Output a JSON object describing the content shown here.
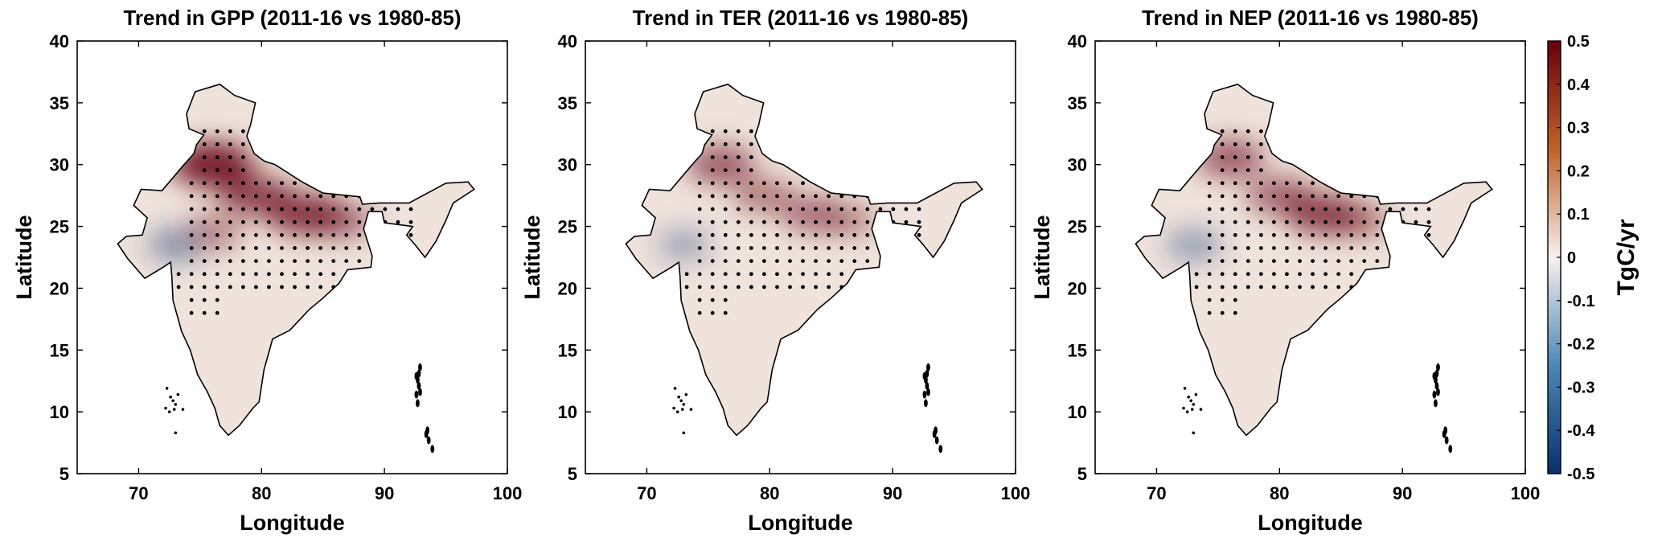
{
  "chart_data": [
    {
      "type": "heatmap",
      "title": "Trend in GPP (2011-16 vs 1980-85)",
      "xlabel": "Longitude",
      "ylabel": "Latitude",
      "xlim": [
        65,
        100
      ],
      "ylim": [
        5,
        40
      ],
      "xticks": [
        "70",
        "80",
        "90",
        "100"
      ],
      "yticks": [
        "5",
        "10",
        "15",
        "20",
        "25",
        "30",
        "35",
        "40"
      ],
      "hotspots": [
        {
          "lon": 76.0,
          "lat": 30.0,
          "value": 0.35
        },
        {
          "lon": 79.5,
          "lat": 27.5,
          "value": 0.25
        },
        {
          "lon": 83.5,
          "lat": 26.0,
          "value": 0.28
        },
        {
          "lon": 86.5,
          "lat": 25.5,
          "value": 0.15
        },
        {
          "lon": 76.0,
          "lat": 24.5,
          "value": 0.1
        },
        {
          "lon": 73.0,
          "lat": 23.5,
          "value": -0.1
        }
      ]
    },
    {
      "type": "heatmap",
      "title": "Trend in TER (2011-16 vs 1980-85)",
      "xlabel": "Longitude",
      "ylabel": "Latitude",
      "xlim": [
        65,
        100
      ],
      "ylim": [
        5,
        40
      ],
      "xticks": [
        "70",
        "80",
        "90",
        "100"
      ],
      "yticks": [
        "5",
        "10",
        "15",
        "20",
        "25",
        "30",
        "35",
        "40"
      ],
      "hotspots": [
        {
          "lon": 76.0,
          "lat": 30.0,
          "value": 0.2
        },
        {
          "lon": 79.5,
          "lat": 27.5,
          "value": 0.12
        },
        {
          "lon": 83.5,
          "lat": 26.0,
          "value": 0.15
        },
        {
          "lon": 86.5,
          "lat": 25.5,
          "value": 0.08
        },
        {
          "lon": 73.0,
          "lat": 23.5,
          "value": -0.05
        }
      ]
    },
    {
      "type": "heatmap",
      "title": "Trend in NEP (2011-16 vs 1980-85)",
      "xlabel": "Longitude",
      "ylabel": "Latitude",
      "xlim": [
        65,
        100
      ],
      "ylim": [
        5,
        40
      ],
      "xticks": [
        "70",
        "80",
        "90",
        "100"
      ],
      "yticks": [
        "5",
        "10",
        "15",
        "20",
        "25",
        "30",
        "35",
        "40"
      ],
      "hotspots": [
        {
          "lon": 76.0,
          "lat": 30.5,
          "value": 0.2
        },
        {
          "lon": 80.0,
          "lat": 27.5,
          "value": 0.18
        },
        {
          "lon": 83.5,
          "lat": 26.0,
          "value": 0.25
        },
        {
          "lon": 86.5,
          "lat": 25.5,
          "value": 0.12
        },
        {
          "lon": 73.0,
          "lat": 23.5,
          "value": -0.08
        }
      ]
    }
  ],
  "colorbar": {
    "label": "TgC/yr",
    "min": -0.5,
    "max": 0.5,
    "ticks": [
      "0.5",
      "0.4",
      "0.3",
      "0.2",
      "0.1",
      "0",
      "-0.1",
      "-0.2",
      "-0.3",
      "-0.4",
      "-0.5"
    ],
    "colors": {
      "high": "#67000d",
      "mid_high": "#c0622b",
      "neutral": "#f7f1ee",
      "mid_low": "#4b87b8",
      "low": "#08306b"
    }
  },
  "map_colors": {
    "land_fill": "#efe3dc",
    "outline": "#000000",
    "significance_dot": "#000000"
  }
}
